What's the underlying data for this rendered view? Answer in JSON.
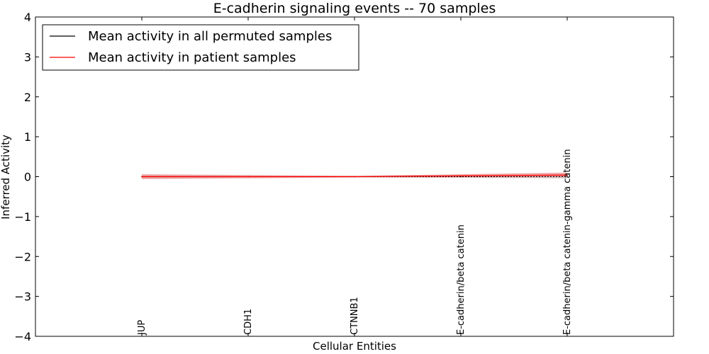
{
  "chart_data": {
    "type": "line",
    "title": "E-cadherin signaling events -- 70 samples",
    "xlabel": "Cellular Entities",
    "ylabel": "Inferred Activity",
    "ylim": [
      -4,
      4
    ],
    "yticks": [
      4,
      3,
      2,
      1,
      0,
      -1,
      -2,
      -3,
      -4
    ],
    "ytick_labels": [
      "4",
      "3",
      "2",
      "1",
      "0",
      "−1",
      "−2",
      "−3",
      "−4"
    ],
    "categories": [
      "JUP",
      "CDH1",
      "CTNNB1",
      "E-cadherin/beta catenin",
      "E-cadherin/beta catenin-gamma catenin"
    ],
    "legend_position": "top-left",
    "series": [
      {
        "name": "Mean activity in all permuted samples",
        "color": "#000000",
        "values": [
          0.0,
          0.0,
          0.0,
          0.0,
          0.0
        ],
        "band_low": [
          -0.03,
          -0.02,
          -0.02,
          -0.03,
          -0.05
        ],
        "band_high": [
          0.03,
          0.02,
          0.02,
          0.03,
          0.05
        ],
        "band_color": "#c8c8c8"
      },
      {
        "name": "Mean activity in patient samples",
        "color": "#ff0000",
        "values": [
          0.0,
          0.0,
          0.0,
          0.02,
          0.04
        ],
        "band_low": [
          -0.06,
          -0.04,
          -0.02,
          -0.02,
          -0.02
        ],
        "band_high": [
          0.06,
          0.04,
          0.02,
          0.06,
          0.1
        ],
        "band_color": "#e06060"
      }
    ]
  }
}
